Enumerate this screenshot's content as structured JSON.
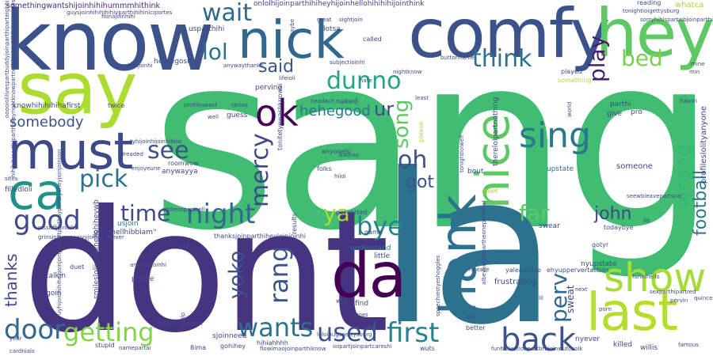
{
  "words": [
    {
      "text": "sang",
      "color": "#40bd72"
    },
    {
      "text": "dont",
      "color": "#463480"
    },
    {
      "text": "la",
      "color": "#2c728e"
    },
    {
      "text": "know",
      "color": "#3b528b"
    },
    {
      "text": "comfy",
      "color": "#3b528b"
    },
    {
      "text": "hey",
      "color": "#5ec962"
    },
    {
      "text": "nick",
      "color": "#31688e"
    },
    {
      "text": "say",
      "color": "#addc30"
    },
    {
      "text": "must",
      "color": "#3e4989"
    },
    {
      "text": "ca",
      "color": "#21918c"
    },
    {
      "text": "da",
      "color": "#440154"
    },
    {
      "text": "last",
      "color": "#b5de2b"
    },
    {
      "text": "hank",
      "color": "#2c728e"
    },
    {
      "text": "nice",
      "color": "#5ec962"
    },
    {
      "text": "show",
      "color": "#a5db36"
    },
    {
      "text": "ok",
      "color": "#440154"
    },
    {
      "text": "sing",
      "color": "#2a788e"
    },
    {
      "text": "back",
      "color": "#3b528b"
    },
    {
      "text": "night",
      "color": "#31688e"
    },
    {
      "text": "good",
      "color": "#3e4a89"
    },
    {
      "text": "door",
      "color": "#31688e"
    },
    {
      "text": "first",
      "color": "#26828e"
    },
    {
      "text": "used",
      "color": "#3b528b"
    },
    {
      "text": "wants",
      "color": "#2c728e"
    },
    {
      "text": "getting",
      "color": "#84d44b"
    },
    {
      "text": "wait",
      "color": "#31688e"
    },
    {
      "text": "lol",
      "color": "#2c728e"
    },
    {
      "text": "pick",
      "color": "#2c728e"
    },
    {
      "text": "see",
      "color": "#3b528b"
    },
    {
      "text": "time",
      "color": "#3e4989"
    },
    {
      "text": "bye",
      "color": "#26828e"
    },
    {
      "text": "ya",
      "color": "#addc30"
    },
    {
      "text": "dunno",
      "color": "#20a386"
    },
    {
      "text": "think",
      "color": "#2c728e"
    },
    {
      "text": "said",
      "color": "#3b528b"
    },
    {
      "text": "play",
      "color": "#481f70"
    },
    {
      "text": "bed",
      "color": "#7ad151"
    },
    {
      "text": "mercy",
      "color": "#3e4989"
    },
    {
      "text": "rang",
      "color": "#3b528b"
    },
    {
      "text": "yoko",
      "color": "#3b528b"
    },
    {
      "text": "song",
      "color": "#5ec962"
    },
    {
      "text": "oh",
      "color": "#3b528b"
    },
    {
      "text": "got",
      "color": "#3b528b"
    },
    {
      "text": "far",
      "color": "#5ec962"
    },
    {
      "text": "john",
      "color": "#3e4989"
    },
    {
      "text": "perv",
      "color": "#31688e"
    },
    {
      "text": "wrong",
      "color": "#35b779"
    },
    {
      "text": "football",
      "color": "#2a788e"
    },
    {
      "text": "somebody",
      "color": "#3b528b"
    },
    {
      "text": "hehegood",
      "color": "#2a788e"
    },
    {
      "text": "thanks",
      "color": "#3e4989"
    },
    {
      "text": "ur",
      "color": "#3e4989"
    },
    {
      "text": "mercy",
      "color": "#3e4989"
    },
    {
      "text": "somethingwantshijoinhihihummmhithink",
      "color": "#482878"
    },
    {
      "text": "onlolhijoinparthihiheyhijoinhellohihihihijointhink",
      "color": "#3e4989"
    },
    {
      "text": "knowhihihihihafirst",
      "color": "#3e4989"
    },
    {
      "text": "grinshellhibbiam''",
      "color": "#3e4989"
    },
    {
      "text": "usparthihi",
      "color": "#3e4989"
    },
    {
      "text": "hettiegosh",
      "color": "#3e4989"
    },
    {
      "text": "sweat",
      "color": "#3e4989"
    },
    {
      "text": "someone",
      "color": "#3e4989"
    },
    {
      "text": "upstate",
      "color": "#2c728e"
    },
    {
      "text": "swear",
      "color": "#3e4989"
    },
    {
      "text": "frustrating",
      "color": "#3e4989"
    },
    {
      "text": "talkin",
      "color": "#3e4989"
    },
    {
      "text": "goin",
      "color": "#3e4989"
    },
    {
      "text": "profile",
      "color": "#3e4989"
    },
    {
      "text": "understand",
      "color": "#2a788e"
    },
    {
      "text": "little",
      "color": "#3e4989"
    },
    {
      "text": "game",
      "color": "#3e4989"
    },
    {
      "text": "find",
      "color": "#3e4989"
    },
    {
      "text": "wid",
      "color": "#3e4989"
    },
    {
      "text": "better",
      "color": "#3e4989"
    },
    {
      "text": "killed",
      "color": "#3e4989"
    },
    {
      "text": "nyever",
      "color": "#3e4989"
    },
    {
      "text": "willis",
      "color": "#3e4989"
    },
    {
      "text": "famous",
      "color": "#3e4989"
    },
    {
      "text": "nyupstate",
      "color": "#3e4989"
    },
    {
      "text": "gotyr",
      "color": "#3e4989"
    },
    {
      "text": "todaybye",
      "color": "#3e4989"
    },
    {
      "text": "funhihello",
      "color": "#3e4989"
    },
    {
      "text": "profileslolityanyone",
      "color": "#3e4989"
    },
    {
      "text": "parthi",
      "color": "#3e4989"
    },
    {
      "text": "give",
      "color": "#3e4989"
    },
    {
      "text": "pro",
      "color": "#3e4989"
    },
    {
      "text": "havin",
      "color": "#3e4989"
    },
    {
      "text": "whatca",
      "color": "#a5db36"
    },
    {
      "text": "lotsa",
      "color": "#3e4989"
    },
    {
      "text": "called",
      "color": "#3e4989"
    },
    {
      "text": "naked",
      "color": "#3e4989"
    },
    {
      "text": "guess",
      "color": "#3e4989"
    },
    {
      "text": "anyonehi",
      "color": "#3e4989"
    },
    {
      "text": "folks",
      "color": "#3e4989"
    },
    {
      "text": "played",
      "color": "#3e4989"
    },
    {
      "text": "something",
      "color": "#addc30"
    },
    {
      "text": "anywayya",
      "color": "#3e4989"
    },
    {
      "text": "roomwow",
      "color": "#3e4989"
    },
    {
      "text": "filledloli",
      "color": "#3e4989"
    },
    {
      "text": "sjoinneed",
      "color": "#3e4989"
    },
    {
      "text": "gohihey",
      "color": "#3e4989"
    },
    {
      "text": "hihiahhhh",
      "color": "#3e4989"
    },
    {
      "text": "8ima",
      "color": "#3e4989"
    },
    {
      "text": "cardnials",
      "color": "#3e4989"
    },
    {
      "text": "stupid",
      "color": "#3e4989"
    },
    {
      "text": "year",
      "color": "#3e4989"
    },
    {
      "text": "duet",
      "color": "#3e4989"
    },
    {
      "text": "usjoin",
      "color": "#2c728e"
    },
    {
      "text": "life",
      "color": "#3e4989"
    },
    {
      "text": "results",
      "color": "#3e4989"
    },
    {
      "text": "bout",
      "color": "#3e4989"
    },
    {
      "text": "perverted",
      "color": "#3e4989"
    },
    {
      "text": "thereloIpartnothing",
      "color": "#3e4989"
    },
    {
      "text": "meet",
      "color": "#addc30"
    },
    {
      "text": "perving",
      "color": "#3e4989"
    },
    {
      "text": "twice",
      "color": "#3e4989"
    },
    {
      "text": "please",
      "color": "#addc30"
    },
    {
      "text": "reading",
      "color": "#3e4989"
    },
    {
      "text": "tonightioigettysburg",
      "color": "#3e4989"
    },
    {
      "text": "nightknow",
      "color": "#3e4989"
    },
    {
      "text": "headach",
      "color": "#3e4989"
    },
    {
      "text": "smileslolijoinhihellohiheywb",
      "color": "#3e4989"
    },
    {
      "text": "thanksjoinparthiheyjoinjoinhi",
      "color": "#3e4989"
    },
    {
      "text": "flowimaojoinparthiknow",
      "color": "#3e4989"
    },
    {
      "text": "ioipartjoinpartcareshi",
      "color": "#3e4989"
    },
    {
      "text": "funhielectionpartbrbjoinwutcoolk",
      "color": "#3e4989"
    },
    {
      "text": "wuts",
      "color": "#3e4989"
    },
    {
      "text": "kjoinnicanedont",
      "color": "#3e4989"
    },
    {
      "text": "speechiestyeshoggles",
      "color": "#3e4989"
    },
    {
      "text": "tonitetyewashknowsi",
      "color": "#3e4989"
    },
    {
      "text": "subjectioinhi",
      "color": "#3e4989"
    },
    {
      "text": "buttonname",
      "color": "#3e4989"
    },
    {
      "text": "ehyuppervertaction",
      "color": "#3e4989"
    },
    {
      "text": "yaleaveiike",
      "color": "#3e4989"
    },
    {
      "text": "release",
      "color": "#3e4989"
    },
    {
      "text": "lil",
      "color": "#3e4989"
    },
    {
      "text": "anywaythanks",
      "color": "#3e4989"
    },
    {
      "text": "facejoinjoinhi",
      "color": "#3e4989"
    },
    {
      "text": "sorryhihispartwbjoinparthi",
      "color": "#3e4989"
    },
    {
      "text": "seewbieavepartscar",
      "color": "#3e4989"
    },
    {
      "text": "sexparthipartred",
      "color": "#3e4989"
    },
    {
      "text": "pervin",
      "color": "#3e4989"
    },
    {
      "text": "next",
      "color": "#3e4989"
    },
    {
      "text": "porn",
      "color": "#3e4989"
    },
    {
      "text": "quince",
      "color": "#3e4989"
    },
    {
      "text": "world",
      "color": "#3e4989"
    },
    {
      "text": "mine",
      "color": "#3e4989"
    },
    {
      "text": "min",
      "color": "#3e4989"
    },
    {
      "text": "guysjoinhihihihihiyparthihihiniciportes",
      "color": "#3e4989"
    },
    {
      "text": "addressparthell",
      "color": "#3e4989"
    },
    {
      "text": "enjoyeune",
      "color": "#3e4989"
    },
    {
      "text": "dreaded",
      "color": "#3e4989"
    },
    {
      "text": "tyhijoinhijoinhihiok",
      "color": "#3e4989"
    },
    {
      "text": "badsay",
      "color": "#3e4989"
    },
    {
      "text": "hiioi",
      "color": "#3e4989"
    },
    {
      "text": "goes",
      "color": "#3e4989"
    },
    {
      "text": "loloihugsgettysburg",
      "color": "#3e4989"
    },
    {
      "text": "great",
      "color": "#3e4989"
    },
    {
      "text": "sightjoin",
      "color": "#3e4989"
    },
    {
      "text": "series",
      "color": "#3e4989"
    },
    {
      "text": "well",
      "color": "#3e4989"
    },
    {
      "text": "profileswest",
      "color": "#3e4989"
    },
    {
      "text": "hate",
      "color": "#3e4989"
    },
    {
      "text": "least",
      "color": "#3e4989"
    },
    {
      "text": "help",
      "color": "#3e4989"
    },
    {
      "text": "sites",
      "color": "#3e4989"
    },
    {
      "text": "fionajoinhihi",
      "color": "#3e4989"
    },
    {
      "text": "pissoffjoinhihi",
      "color": "#3e4989"
    },
    {
      "text": "grinsjoinsayyyyyyjoinabutlever",
      "color": "#3e4989"
    },
    {
      "text": "albeyoujoinpartheonepartkewl",
      "color": "#3e4989"
    },
    {
      "text": "tonightloiwell",
      "color": "#3e4989"
    },
    {
      "text": "lifeioli",
      "color": "#3e4989"
    },
    {
      "text": "maybe",
      "color": "#3e4989"
    },
    {
      "text": "namepartai",
      "color": "#3e4989"
    },
    {
      "text": "anywayjoinhi",
      "color": "#3e4989"
    },
    {
      "text": "red",
      "color": "#3e4989"
    },
    {
      "text": "lie",
      "color": "#3e4989"
    },
    {
      "text": "ooooiolilivespartbuddyjoinparthiparteighhi",
      "color": "#3e4989"
    },
    {
      "text": "hihihihiparthiparthiwayrightknowpartnothinghayhihilolnamaaws",
      "color": "#3e4989"
    },
    {
      "text": "uyhijoinhihiheyjoinjoinpartgetpartbaypartbyeheyjoinjoinjoin",
      "color": "#3e4989"
    }
  ]
}
